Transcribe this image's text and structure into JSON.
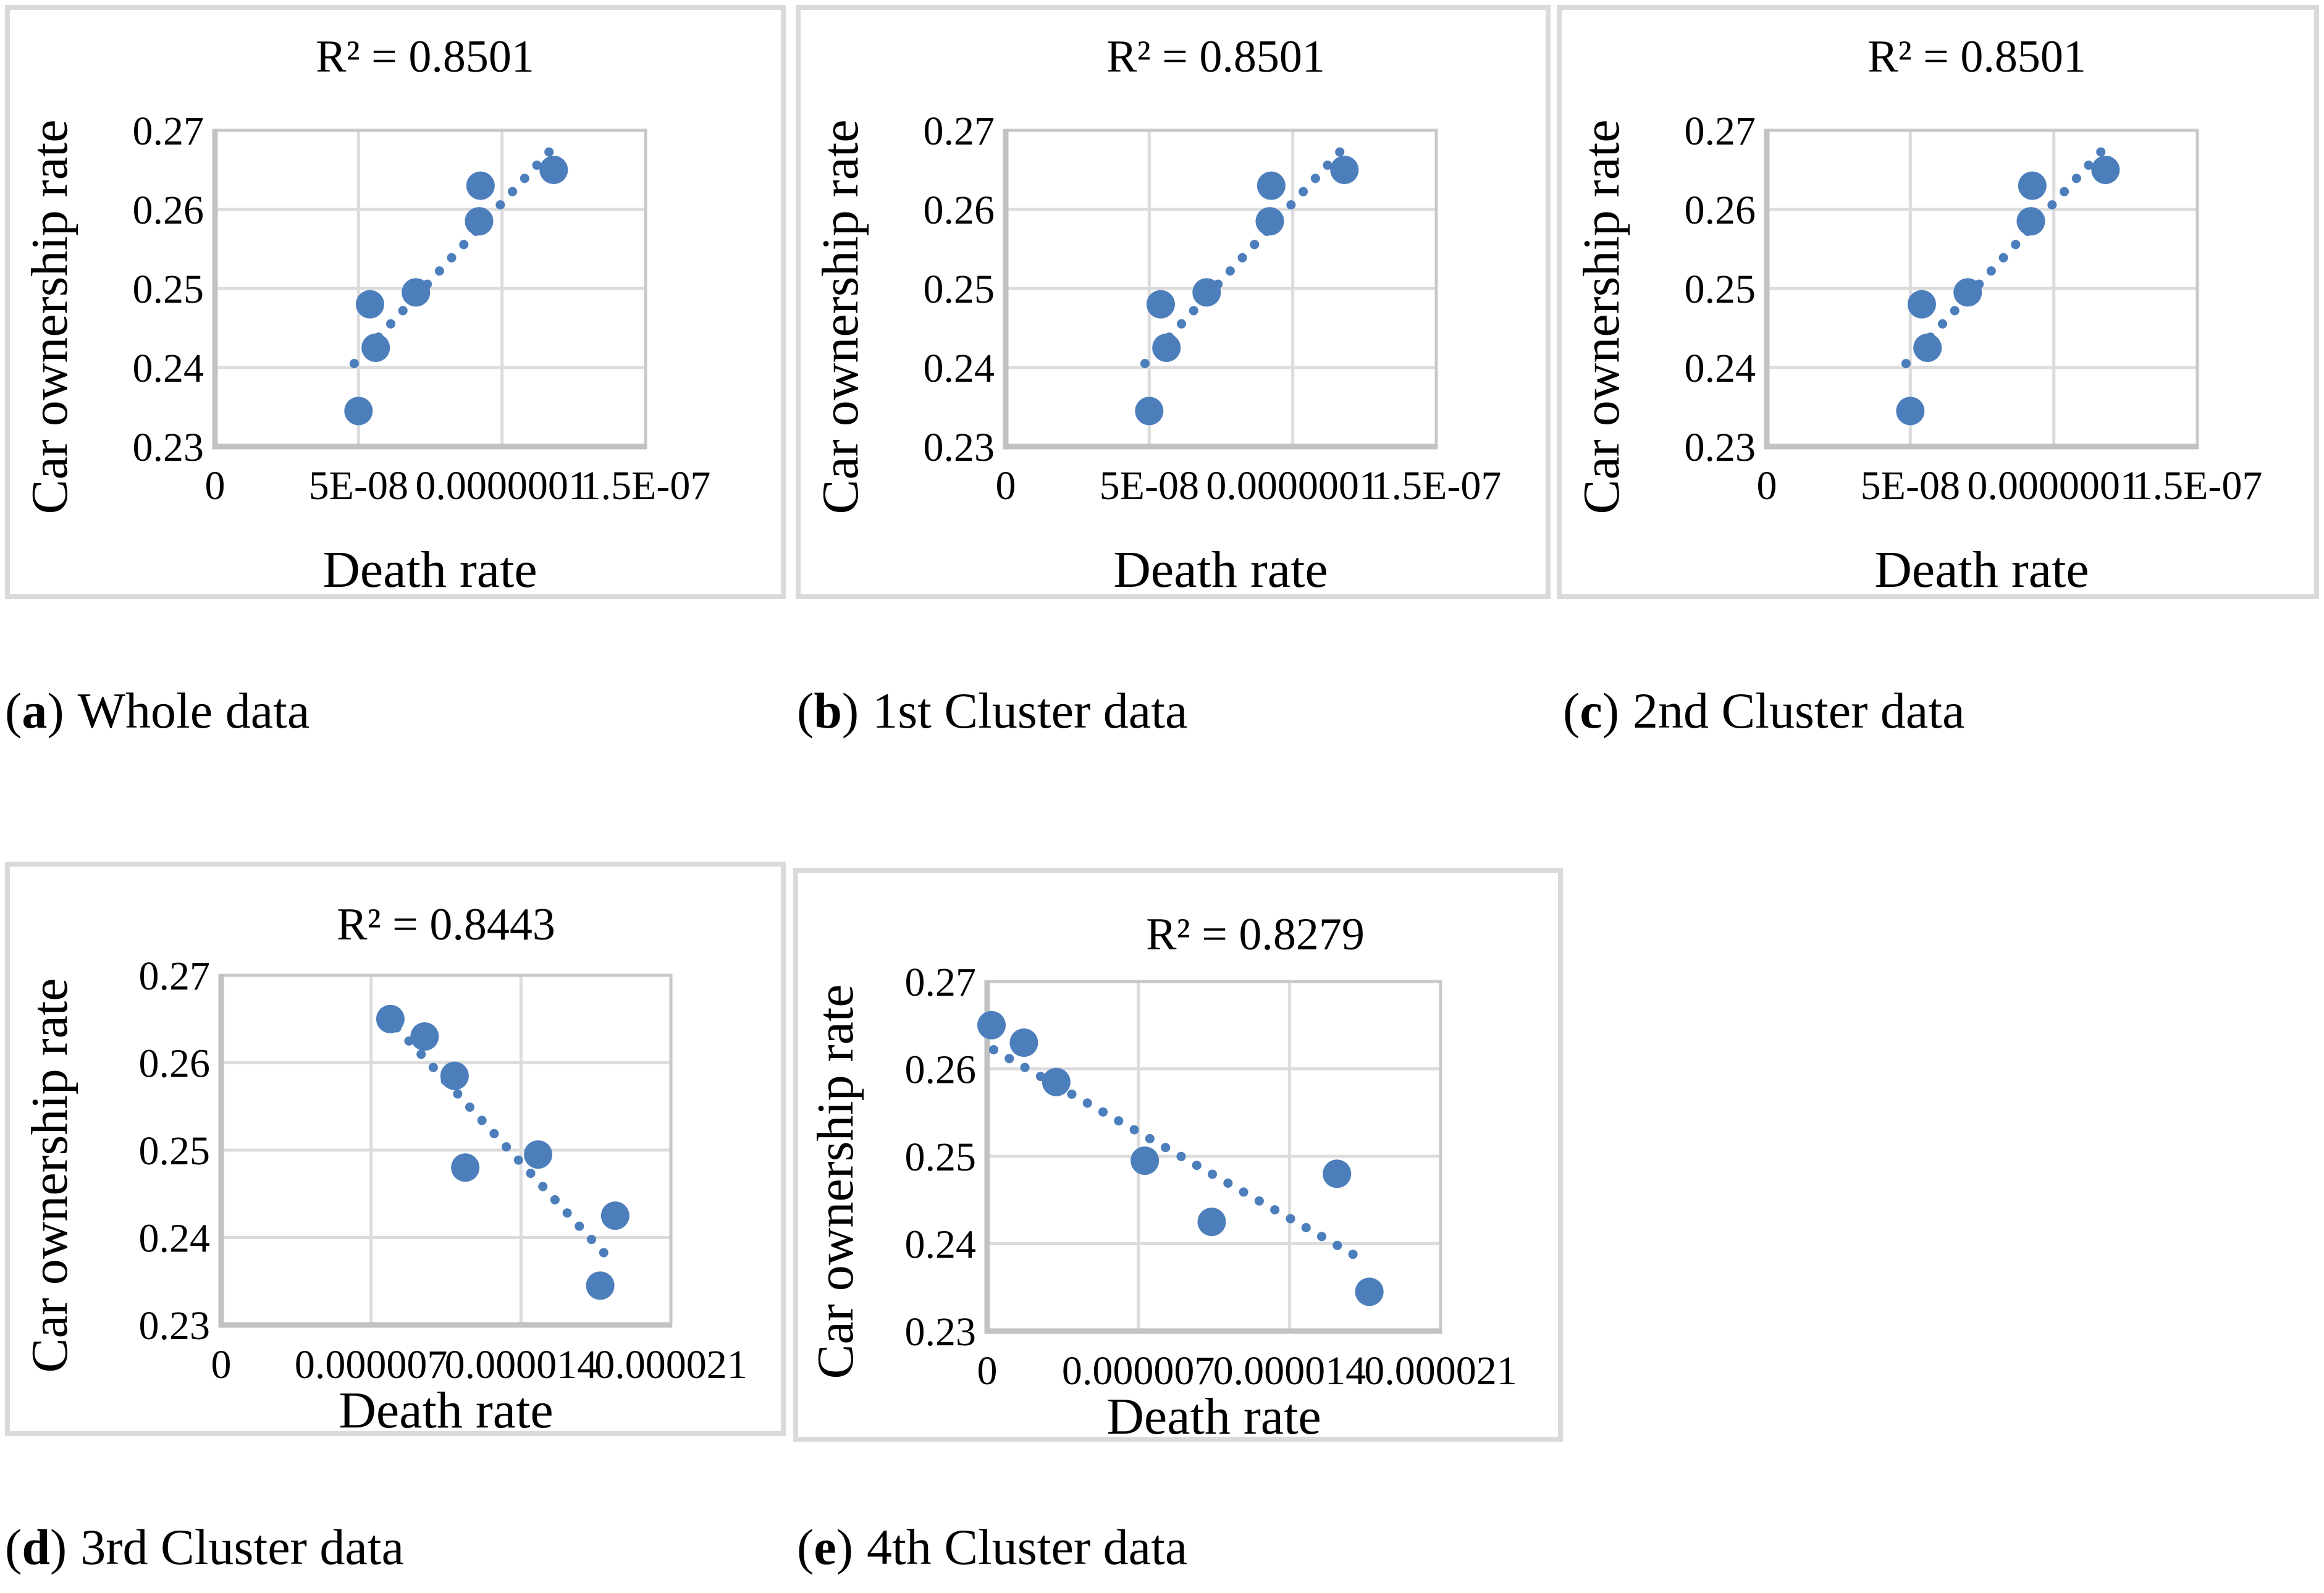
{
  "figure": {
    "ylabel": "Car ownership rate",
    "xlabel": "Death rate"
  },
  "punct": {
    "open": "(",
    "close": ")"
  },
  "colors": {
    "marker": "#4D7EBC",
    "trend": "#4D7EBC",
    "gridline": "#DCDCDC",
    "plot_border": "#C9C9C9",
    "axis_line": "#C2C2C2",
    "box_border": "#DADADA",
    "text": "#000000"
  },
  "chart_data": [
    {
      "id": "a",
      "type": "scatter",
      "caption_letter": "a",
      "caption_text": "Whole data",
      "title": "R² = 0.8501",
      "r_squared": 0.8501,
      "xlabel": "Death rate",
      "ylabel": "Car ownership rate",
      "xlim": [
        0,
        1.5e-07
      ],
      "ylim": [
        0.23,
        0.27
      ],
      "grid": true,
      "x_ticks": [
        {
          "v": 0,
          "label": "0"
        },
        {
          "v": 5e-08,
          "label": "5E-08"
        },
        {
          "v": 1e-07,
          "label": "0.0000001"
        },
        {
          "v": 1.5e-07,
          "label": "1.5E-07"
        }
      ],
      "y_ticks": [
        {
          "v": 0.23,
          "label": "0.23"
        },
        {
          "v": 0.24,
          "label": "0.24"
        },
        {
          "v": 0.25,
          "label": "0.25"
        },
        {
          "v": 0.26,
          "label": "0.26"
        },
        {
          "v": 0.27,
          "label": "0.27"
        }
      ],
      "points": [
        [
          5e-08,
          0.2345
        ],
        [
          5.6e-08,
          0.2425
        ],
        [
          5.4e-08,
          0.248
        ],
        [
          7e-08,
          0.2495
        ],
        [
          9.2e-08,
          0.2585
        ],
        [
          9.25e-08,
          0.263
        ],
        [
          1.18e-07,
          0.265
        ]
      ],
      "trendline": {
        "x1": 4.85e-08,
        "y1": 0.2405,
        "x2": 1.2e-07,
        "y2": 0.2687,
        "style": "dotted"
      }
    },
    {
      "id": "b",
      "type": "scatter",
      "caption_letter": "b",
      "caption_text": "1st Cluster data",
      "title": "R² = 0.8501",
      "r_squared": 0.8501,
      "xlabel": "Death rate",
      "ylabel": "Car ownership rate",
      "xlim": [
        0,
        1.5e-07
      ],
      "ylim": [
        0.23,
        0.27
      ],
      "grid": true,
      "x_ticks": [
        {
          "v": 0,
          "label": "0"
        },
        {
          "v": 5e-08,
          "label": "5E-08"
        },
        {
          "v": 1e-07,
          "label": "0.0000001"
        },
        {
          "v": 1.5e-07,
          "label": "1.5E-07"
        }
      ],
      "y_ticks": [
        {
          "v": 0.23,
          "label": "0.23"
        },
        {
          "v": 0.24,
          "label": "0.24"
        },
        {
          "v": 0.25,
          "label": "0.25"
        },
        {
          "v": 0.26,
          "label": "0.26"
        },
        {
          "v": 0.27,
          "label": "0.27"
        }
      ],
      "points": [
        [
          5e-08,
          0.2345
        ],
        [
          5.6e-08,
          0.2425
        ],
        [
          5.4e-08,
          0.248
        ],
        [
          7e-08,
          0.2495
        ],
        [
          9.2e-08,
          0.2585
        ],
        [
          9.25e-08,
          0.263
        ],
        [
          1.18e-07,
          0.265
        ]
      ],
      "trendline": {
        "x1": 4.85e-08,
        "y1": 0.2405,
        "x2": 1.2e-07,
        "y2": 0.2687,
        "style": "dotted"
      }
    },
    {
      "id": "c",
      "type": "scatter",
      "caption_letter": "c",
      "caption_text": "2nd Cluster data",
      "title": "R² = 0.8501",
      "r_squared": 0.8501,
      "xlabel": "Death rate",
      "ylabel": "Car ownership rate",
      "xlim": [
        0,
        1.5e-07
      ],
      "ylim": [
        0.23,
        0.27
      ],
      "grid": true,
      "x_ticks": [
        {
          "v": 0,
          "label": "0"
        },
        {
          "v": 5e-08,
          "label": "5E-08"
        },
        {
          "v": 1e-07,
          "label": "0.0000001"
        },
        {
          "v": 1.5e-07,
          "label": "1.5E-07"
        }
      ],
      "y_ticks": [
        {
          "v": 0.23,
          "label": "0.23"
        },
        {
          "v": 0.24,
          "label": "0.24"
        },
        {
          "v": 0.25,
          "label": "0.25"
        },
        {
          "v": 0.26,
          "label": "0.26"
        },
        {
          "v": 0.27,
          "label": "0.27"
        }
      ],
      "points": [
        [
          5e-08,
          0.2345
        ],
        [
          5.6e-08,
          0.2425
        ],
        [
          5.4e-08,
          0.248
        ],
        [
          7e-08,
          0.2495
        ],
        [
          9.2e-08,
          0.2585
        ],
        [
          9.25e-08,
          0.263
        ],
        [
          1.18e-07,
          0.265
        ]
      ],
      "trendline": {
        "x1": 4.85e-08,
        "y1": 0.2405,
        "x2": 1.2e-07,
        "y2": 0.2687,
        "style": "dotted"
      }
    },
    {
      "id": "d",
      "type": "scatter",
      "caption_letter": "d",
      "caption_text": "3rd Cluster data",
      "title": "R² = 0.8443",
      "r_squared": 0.8443,
      "xlabel": "Death rate",
      "ylabel": "Car ownership rate",
      "xlim": [
        0,
        2.1e-05
      ],
      "ylim": [
        0.23,
        0.27
      ],
      "grid": true,
      "x_ticks": [
        {
          "v": 0,
          "label": "0"
        },
        {
          "v": 7e-06,
          "label": "0.000007"
        },
        {
          "v": 1.4e-05,
          "label": "0.000014"
        },
        {
          "v": 2.1e-05,
          "label": "0.000021"
        }
      ],
      "y_ticks": [
        {
          "v": 0.23,
          "label": "0.23"
        },
        {
          "v": 0.24,
          "label": "0.24"
        },
        {
          "v": 0.25,
          "label": "0.25"
        },
        {
          "v": 0.26,
          "label": "0.26"
        },
        {
          "v": 0.27,
          "label": "0.27"
        }
      ],
      "points": [
        [
          7.9e-06,
          0.265
        ],
        [
          9.5e-06,
          0.263
        ],
        [
          1.09e-05,
          0.2585
        ],
        [
          1.14e-05,
          0.248
        ],
        [
          1.48e-05,
          0.2495
        ],
        [
          1.84e-05,
          0.2425
        ],
        [
          1.77e-05,
          0.2345
        ]
      ],
      "trendline": {
        "x1": 8.2e-06,
        "y1": 0.264,
        "x2": 1.83e-05,
        "y2": 0.2371,
        "style": "dotted"
      }
    },
    {
      "id": "e",
      "type": "scatter",
      "caption_letter": "e",
      "caption_text": "4th Cluster data",
      "title": "R² = 0.8279",
      "r_squared": 0.8279,
      "xlabel": "Death rate",
      "ylabel": "Car ownership rate",
      "xlim": [
        0,
        2.1e-05
      ],
      "ylim": [
        0.23,
        0.27
      ],
      "grid": true,
      "x_ticks": [
        {
          "v": 0,
          "label": "0"
        },
        {
          "v": 7e-06,
          "label": "0.000007"
        },
        {
          "v": 1.4e-05,
          "label": "0.000014"
        },
        {
          "v": 2.1e-05,
          "label": "0.000021"
        }
      ],
      "y_ticks": [
        {
          "v": 0.23,
          "label": "0.23"
        },
        {
          "v": 0.24,
          "label": "0.24"
        },
        {
          "v": 0.25,
          "label": "0.25"
        },
        {
          "v": 0.26,
          "label": "0.26"
        },
        {
          "v": 0.27,
          "label": "0.27"
        }
      ],
      "points": [
        [
          2e-07,
          0.265
        ],
        [
          1.7e-06,
          0.263
        ],
        [
          3.2e-06,
          0.2585
        ],
        [
          7.3e-06,
          0.2495
        ],
        [
          1.04e-05,
          0.2425
        ],
        [
          1.62e-05,
          0.248
        ],
        [
          1.77e-05,
          0.2345
        ]
      ],
      "trendline": {
        "x1": 3e-07,
        "y1": 0.2622,
        "x2": 1.75e-05,
        "y2": 0.238,
        "style": "dotted"
      }
    }
  ]
}
